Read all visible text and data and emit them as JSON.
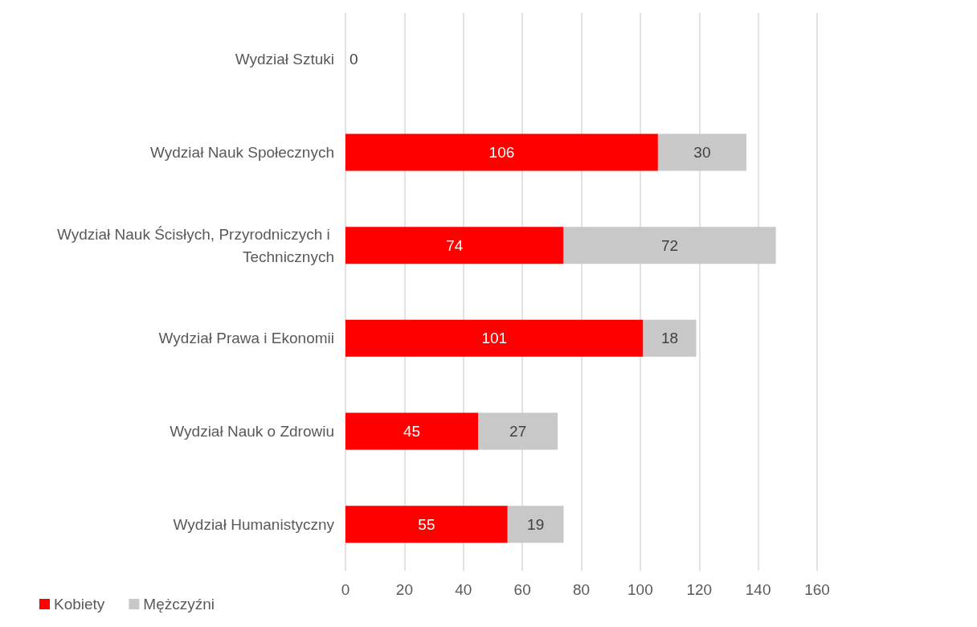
{
  "chart_data": {
    "type": "bar",
    "orientation": "horizontal",
    "stacked": true,
    "categories": [
      "Wydział Sztuki",
      "Wydział Nauk Społecznych",
      "Wydział Nauk Ścisłych, Przyrodniczych i Technicznych",
      "Wydział Prawa i Ekonomii",
      "Wydział Nauk o Zdrowiu",
      "Wydział Humanistyczny"
    ],
    "series": [
      {
        "name": "Kobiety",
        "color": "#ff0000",
        "values": [
          0,
          106,
          74,
          101,
          45,
          55
        ]
      },
      {
        "name": "Mężczyźni",
        "color": "#c8c8c8",
        "values": [
          null,
          30,
          72,
          18,
          27,
          19
        ]
      }
    ],
    "xlim": [
      0,
      160
    ],
    "xticks": [
      0,
      20,
      40,
      60,
      80,
      100,
      120,
      140,
      160
    ],
    "grid": "x",
    "legend": "bottom left",
    "data_labels": true
  }
}
